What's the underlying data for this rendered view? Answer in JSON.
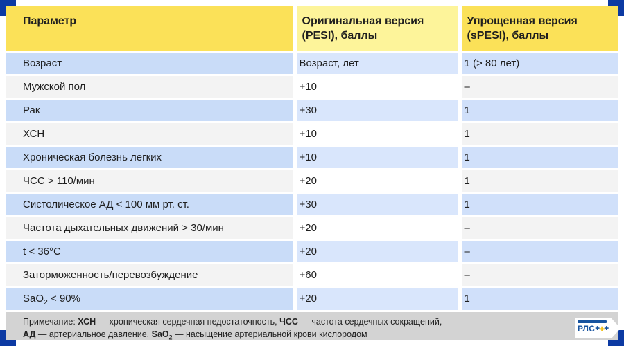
{
  "chart_data": {
    "type": "table",
    "columns": [
      "Параметр",
      "Оригинальная версия (PESI), баллы",
      "Упрощенная версия (sPESI), баллы"
    ],
    "rows": [
      {
        "param": "Возраст",
        "pesi": "Возраст, лет",
        "spesi": "1 (> 80 лет)"
      },
      {
        "param": "Мужской пол",
        "pesi": "+10",
        "spesi": "–"
      },
      {
        "param": "Рак",
        "pesi": "+30",
        "spesi": "1"
      },
      {
        "param": "ХСН",
        "pesi": "+10",
        "spesi": "1"
      },
      {
        "param": "Хроническая болезнь легких",
        "pesi": "+10",
        "spesi": "1"
      },
      {
        "param": "ЧСС > 110/мин",
        "pesi": "+20",
        "spesi": "1"
      },
      {
        "param": "Систолическое АД < 100 мм рт. ст.",
        "pesi": "+30",
        "spesi": "1"
      },
      {
        "param": "Частота дыхательных движений > 30/мин",
        "pesi": "+20",
        "spesi": "–"
      },
      {
        "param": "t < 36°C",
        "pesi": "+20",
        "spesi": "–"
      },
      {
        "param": "Заторможенность/перевозбуждение",
        "pesi": "+60",
        "spesi": "–"
      },
      {
        "param": "SaO₂ < 90%",
        "pesi": "+20",
        "spesi": "1"
      }
    ],
    "layout": {
      "striped": true,
      "stripe_colors": [
        "blue",
        "light"
      ],
      "header_color": "yellow"
    }
  },
  "note": {
    "segments": [
      {
        "text": "Примечание: ",
        "bold": false
      },
      {
        "text": "ХСН",
        "bold": true
      },
      {
        "text": " — хроническая сердечная недостаточность, ",
        "bold": false
      },
      {
        "text": "ЧСС",
        "bold": true
      },
      {
        "text": " — частота сердечных сокращений,",
        "bold": false
      },
      {
        "break": true
      },
      {
        "text": "АД",
        "bold": true
      },
      {
        "text": " — артериальное давление, ",
        "bold": false
      },
      {
        "text": "SaO₂",
        "bold": true
      },
      {
        "text": " — насыщение артериальной крови кислородом",
        "bold": false
      }
    ]
  },
  "logo": {
    "text": "РЛС",
    "pluses_leading": "✚",
    "pluses_gold": "✚",
    "pluses_trailing": "✚"
  },
  "colors": {
    "corner_blue": "#0c3aa3",
    "header_yellow": "#fbe158",
    "header_pale_yellow": "#fdf49a",
    "row_blue": "#c9dcf8",
    "row_light": "#f3f3f3",
    "note_band_gray": "#d3d3d3",
    "logo_blue": "#17539f",
    "logo_gold": "#f0c11e"
  }
}
